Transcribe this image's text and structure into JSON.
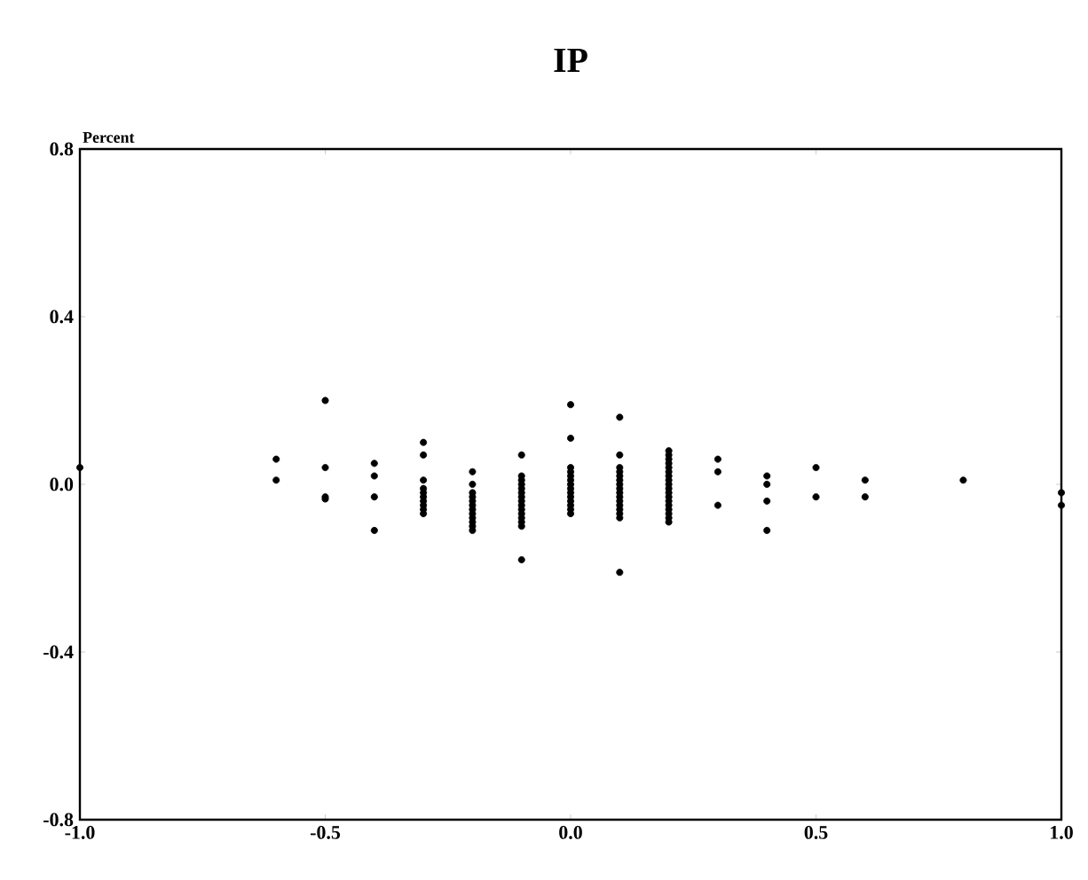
{
  "chart_data": {
    "type": "scatter",
    "title": "IP",
    "ylabel": "Percent",
    "color": "#000000",
    "marker": "circle",
    "grid": false,
    "xlim": [
      -1.0,
      1.0
    ],
    "xticks": [
      {
        "value": -1.0,
        "label": "-1.0"
      },
      -0.5,
      {
        "value": 0,
        "label": "0.0"
      },
      0.5,
      {
        "value": 1.0,
        "label": "1.0"
      }
    ],
    "ylim": [
      -0.8,
      0.8
    ],
    "yticks": [
      -0.8,
      -0.4,
      {
        "value": 0,
        "label": "0.0"
      },
      0.4,
      0.8
    ],
    "x": [
      -1.0,
      -0.6,
      -0.6,
      -0.5,
      -0.5,
      -0.5,
      -0.5,
      -0.4,
      -0.4,
      -0.4,
      -0.4,
      -0.3,
      -0.3,
      -0.3,
      -0.3,
      -0.3,
      -0.3,
      -0.3,
      -0.3,
      -0.3,
      -0.3,
      -0.2,
      -0.2,
      -0.2,
      -0.2,
      -0.2,
      -0.2,
      -0.2,
      -0.2,
      -0.2,
      -0.2,
      -0.2,
      -0.2,
      -0.1,
      -0.1,
      -0.1,
      -0.1,
      -0.1,
      -0.1,
      -0.1,
      -0.1,
      -0.1,
      -0.1,
      -0.1,
      -0.1,
      -0.1,
      -0.1,
      -0.1,
      0.0,
      0.0,
      0.0,
      0.0,
      0.0,
      0.0,
      0.0,
      0.0,
      0.0,
      0.0,
      0.0,
      0.0,
      0.0,
      0.0,
      0.1,
      0.1,
      0.1,
      0.1,
      0.1,
      0.1,
      0.1,
      0.1,
      0.1,
      0.1,
      0.1,
      0.1,
      0.1,
      0.1,
      0.1,
      0.1,
      0.2,
      0.2,
      0.2,
      0.2,
      0.2,
      0.2,
      0.2,
      0.2,
      0.2,
      0.2,
      0.2,
      0.2,
      0.2,
      0.2,
      0.2,
      0.2,
      0.2,
      0.2,
      0.3,
      0.3,
      0.3,
      0.4,
      0.4,
      0.4,
      0.4,
      0.5,
      0.5,
      0.6,
      0.6,
      0.8,
      1.0,
      1.0
    ],
    "values": [
      0.04,
      0.06,
      0.01,
      0.2,
      0.04,
      -0.03,
      -0.035,
      0.05,
      0.02,
      -0.03,
      -0.11,
      0.1,
      0.07,
      0.01,
      -0.01,
      -0.02,
      -0.03,
      -0.04,
      -0.05,
      -0.06,
      -0.07,
      0.03,
      0.0,
      -0.02,
      -0.03,
      -0.04,
      -0.05,
      -0.06,
      -0.07,
      -0.08,
      -0.09,
      -0.1,
      -0.11,
      0.07,
      0.02,
      0.01,
      0.0,
      -0.01,
      -0.02,
      -0.03,
      -0.04,
      -0.05,
      -0.06,
      -0.07,
      -0.08,
      -0.09,
      -0.1,
      -0.18,
      0.19,
      0.11,
      0.04,
      0.03,
      0.02,
      0.01,
      0.0,
      -0.01,
      -0.02,
      -0.03,
      -0.04,
      -0.05,
      -0.06,
      -0.07,
      0.16,
      0.07,
      0.04,
      0.03,
      0.02,
      0.01,
      0.0,
      -0.01,
      -0.02,
      -0.03,
      -0.04,
      -0.05,
      -0.06,
      -0.07,
      -0.08,
      -0.21,
      0.08,
      0.07,
      0.06,
      0.05,
      0.04,
      0.03,
      0.02,
      0.01,
      0.0,
      -0.01,
      -0.02,
      -0.03,
      -0.04,
      -0.05,
      -0.06,
      -0.07,
      -0.08,
      -0.09,
      0.06,
      0.03,
      -0.05,
      0.02,
      0.0,
      -0.04,
      -0.11,
      0.04,
      -0.03,
      0.01,
      -0.03,
      0.01,
      -0.02,
      -0.05
    ]
  }
}
